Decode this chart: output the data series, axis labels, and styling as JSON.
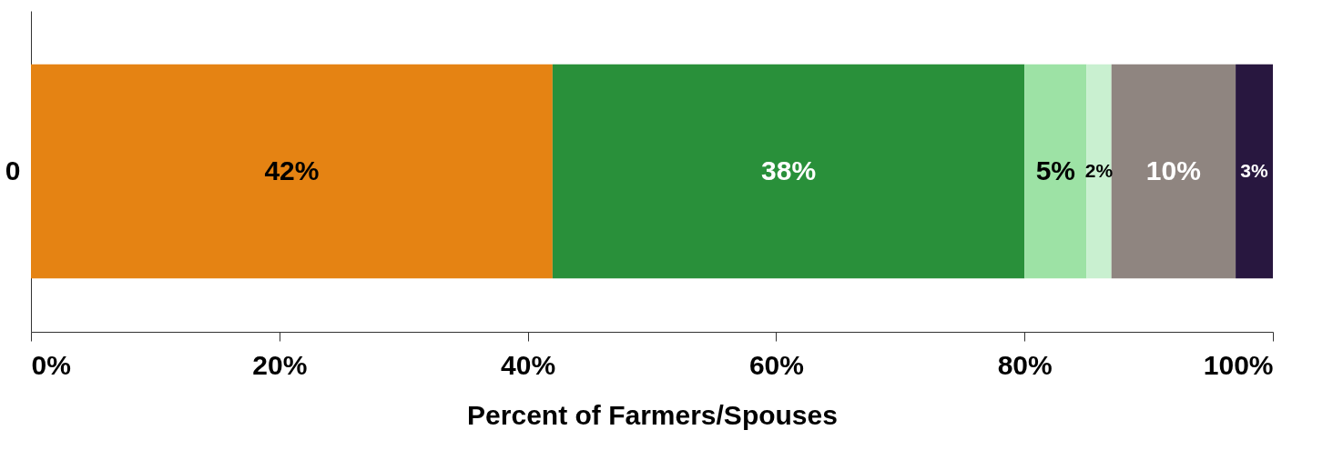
{
  "chart_data": {
    "type": "bar",
    "orientation": "horizontal",
    "stacked": true,
    "xlabel": "Percent of Farmers/Spouses",
    "categories": [
      "0"
    ],
    "series": [
      {
        "color": "#e58313",
        "values": [
          42
        ]
      },
      {
        "color": "#29903a",
        "values": [
          38
        ]
      },
      {
        "color": "#9de2a5",
        "values": [
          5
        ]
      },
      {
        "color": "#c9f0d0",
        "values": [
          2
        ]
      },
      {
        "color": "#8f8580",
        "values": [
          10
        ]
      },
      {
        "color": "#28173f",
        "values": [
          3
        ]
      }
    ],
    "xlim": [
      0,
      100
    ],
    "xticks": [
      {
        "value": 0,
        "label": "0%"
      },
      {
        "value": 20,
        "label": "20%"
      },
      {
        "value": 40,
        "label": "40%"
      },
      {
        "value": 60,
        "label": "60%"
      },
      {
        "value": 80,
        "label": "80%"
      },
      {
        "value": 100,
        "label": "100%"
      }
    ],
    "value_labels": [
      [
        "42%"
      ],
      [
        "38%"
      ],
      [
        "5%"
      ],
      [
        "2%"
      ],
      [
        "10%"
      ],
      [
        "3%"
      ]
    ],
    "grid": false,
    "legend": false
  }
}
